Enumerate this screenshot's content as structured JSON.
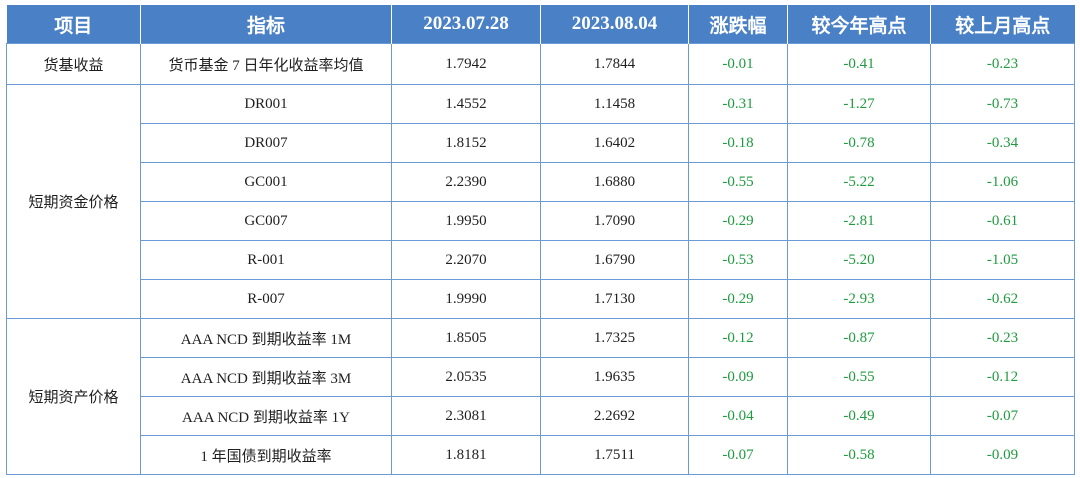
{
  "colors": {
    "header_bg": "#4a80c6",
    "header_text": "#ffffff",
    "border": "#6b9bd6",
    "negative_change": "#1f9b3f"
  },
  "header": {
    "item": "项目",
    "indicator": "指标",
    "date1": "2023.07.28",
    "date2": "2023.08.04",
    "change": "涨跌幅",
    "vs_year_high": "较今年高点",
    "vs_last_month_high": "较上月高点"
  },
  "groups": [
    {
      "category": "货基收益",
      "rows": [
        {
          "indicator": "货币基金 7 日年化收益率均值",
          "v1": "1.7942",
          "v2": "1.7844",
          "change": "-0.01",
          "vs_year_high": "-0.41",
          "vs_month_high": "-0.23"
        }
      ]
    },
    {
      "category": "短期资金价格",
      "rows": [
        {
          "indicator": "DR001",
          "v1": "1.4552",
          "v2": "1.1458",
          "change": "-0.31",
          "vs_year_high": "-1.27",
          "vs_month_high": "-0.73"
        },
        {
          "indicator": "DR007",
          "v1": "1.8152",
          "v2": "1.6402",
          "change": "-0.18",
          "vs_year_high": "-0.78",
          "vs_month_high": "-0.34"
        },
        {
          "indicator": "GC001",
          "v1": "2.2390",
          "v2": "1.6880",
          "change": "-0.55",
          "vs_year_high": "-5.22",
          "vs_month_high": "-1.06"
        },
        {
          "indicator": "GC007",
          "v1": "1.9950",
          "v2": "1.7090",
          "change": "-0.29",
          "vs_year_high": "-2.81",
          "vs_month_high": "-0.61"
        },
        {
          "indicator": "R-001",
          "v1": "2.2070",
          "v2": "1.6790",
          "change": "-0.53",
          "vs_year_high": "-5.20",
          "vs_month_high": "-1.05"
        },
        {
          "indicator": "R-007",
          "v1": "1.9990",
          "v2": "1.7130",
          "change": "-0.29",
          "vs_year_high": "-2.93",
          "vs_month_high": "-0.62"
        }
      ]
    },
    {
      "category": "短期资产价格",
      "rows": [
        {
          "indicator": "AAA NCD 到期收益率 1M",
          "v1": "1.8505",
          "v2": "1.7325",
          "change": "-0.12",
          "vs_year_high": "-0.87",
          "vs_month_high": "-0.23"
        },
        {
          "indicator": "AAA NCD 到期收益率 3M",
          "v1": "2.0535",
          "v2": "1.9635",
          "change": "-0.09",
          "vs_year_high": "-0.55",
          "vs_month_high": "-0.12"
        },
        {
          "indicator": "AAA NCD 到期收益率 1Y",
          "v1": "2.3081",
          "v2": "2.2692",
          "change": "-0.04",
          "vs_year_high": "-0.49",
          "vs_month_high": "-0.07"
        },
        {
          "indicator": "1 年国债到期收益率",
          "v1": "1.8181",
          "v2": "1.7511",
          "change": "-0.07",
          "vs_year_high": "-0.58",
          "vs_month_high": "-0.09"
        }
      ]
    }
  ]
}
